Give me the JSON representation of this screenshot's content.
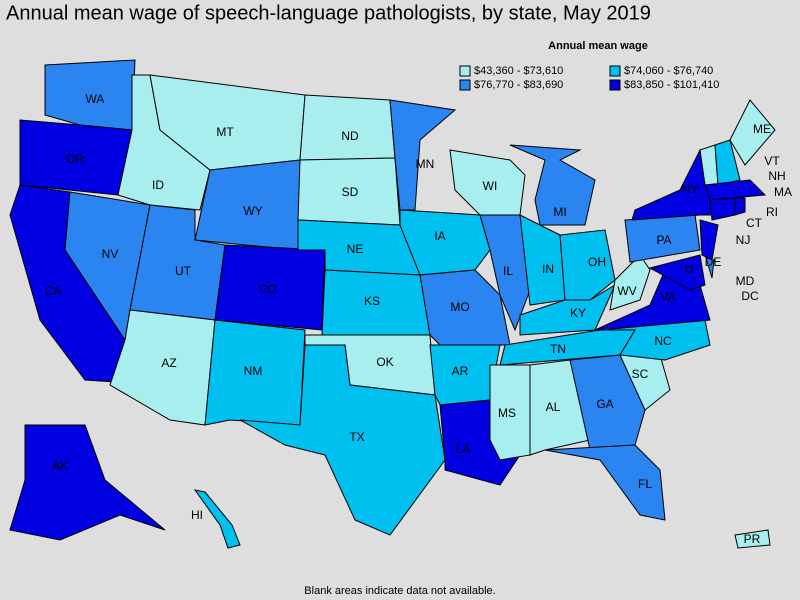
{
  "title": "Annual mean wage of speech-language pathologists, by state, May 2019",
  "legend": {
    "title": "Annual mean wage",
    "items": [
      {
        "label": "$43,360 - $73,610",
        "color": "#a8eeee"
      },
      {
        "label": "$74,060 - $76,740",
        "color": "#00c0f0"
      },
      {
        "label": "$76,770 - $83,690",
        "color": "#2a85f0"
      },
      {
        "label": "$83,850 - $101,410",
        "color": "#0000e0"
      }
    ]
  },
  "states": [
    {
      "abbr": "WA",
      "class": 2
    },
    {
      "abbr": "OR",
      "class": 3
    },
    {
      "abbr": "CA",
      "class": 3
    },
    {
      "abbr": "NV",
      "class": 2
    },
    {
      "abbr": "ID",
      "class": 0
    },
    {
      "abbr": "MT",
      "class": 0
    },
    {
      "abbr": "WY",
      "class": 2
    },
    {
      "abbr": "UT",
      "class": 2
    },
    {
      "abbr": "AZ",
      "class": 0
    },
    {
      "abbr": "CO",
      "class": 3
    },
    {
      "abbr": "NM",
      "class": 1
    },
    {
      "abbr": "ND",
      "class": 0
    },
    {
      "abbr": "SD",
      "class": 0
    },
    {
      "abbr": "NE",
      "class": 1
    },
    {
      "abbr": "KS",
      "class": 1
    },
    {
      "abbr": "OK",
      "class": 0
    },
    {
      "abbr": "TX",
      "class": 1
    },
    {
      "abbr": "MN",
      "class": 2
    },
    {
      "abbr": "IA",
      "class": 1
    },
    {
      "abbr": "MO",
      "class": 2
    },
    {
      "abbr": "AR",
      "class": 1
    },
    {
      "abbr": "LA",
      "class": 3
    },
    {
      "abbr": "WI",
      "class": 0
    },
    {
      "abbr": "IL",
      "class": 2
    },
    {
      "abbr": "MI",
      "class": 2
    },
    {
      "abbr": "IN",
      "class": 1
    },
    {
      "abbr": "OH",
      "class": 1
    },
    {
      "abbr": "KY",
      "class": 1
    },
    {
      "abbr": "TN",
      "class": 1
    },
    {
      "abbr": "MS",
      "class": 0
    },
    {
      "abbr": "AL",
      "class": 0
    },
    {
      "abbr": "GA",
      "class": 2
    },
    {
      "abbr": "FL",
      "class": 2
    },
    {
      "abbr": "SC",
      "class": 0
    },
    {
      "abbr": "NC",
      "class": 1
    },
    {
      "abbr": "VA",
      "class": 3
    },
    {
      "abbr": "WV",
      "class": 0
    },
    {
      "abbr": "PA",
      "class": 2
    },
    {
      "abbr": "NY",
      "class": 3
    },
    {
      "abbr": "NJ",
      "class": 3
    },
    {
      "abbr": "DE",
      "class": 2
    },
    {
      "abbr": "MD",
      "class": 3
    },
    {
      "abbr": "DC",
      "class": 3
    },
    {
      "abbr": "VT",
      "class": 0
    },
    {
      "abbr": "NH",
      "class": 1
    },
    {
      "abbr": "ME",
      "class": 0
    },
    {
      "abbr": "MA",
      "class": 3
    },
    {
      "abbr": "CT",
      "class": 3
    },
    {
      "abbr": "RI",
      "class": 3
    },
    {
      "abbr": "AK",
      "class": 3
    },
    {
      "abbr": "HI",
      "class": 1
    },
    {
      "abbr": "PR",
      "class": 0
    }
  ],
  "footnote": "Blank areas indicate data not available."
}
